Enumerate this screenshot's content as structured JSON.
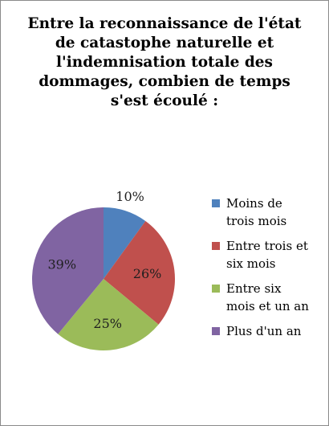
{
  "chart_data": {
    "type": "pie",
    "title_lines": [
      "Entre la  reconnaissance de l'état",
      "de catastophe naturelle et",
      "l'indemnisation totale des",
      "dommages, combien de temps",
      "s'est écoulé :"
    ],
    "slices": [
      {
        "name_lines": [
          "Moins de",
          "trois mois"
        ],
        "value": 10,
        "label": "10%",
        "color": "#4f81bd"
      },
      {
        "name_lines": [
          "Entre trois et",
          "six mois"
        ],
        "value": 26,
        "label": "26%",
        "color": "#c0504d"
      },
      {
        "name_lines": [
          "Entre six",
          "mois et un an"
        ],
        "value": 25,
        "label": "25%",
        "color": "#9bbb59"
      },
      {
        "name_lines": [
          "Plus d'un an"
        ],
        "value": 39,
        "label": "39%",
        "color": "#8064a2"
      }
    ],
    "legend_position": "right",
    "start_angle": "12 o'clock",
    "direction": "clockwise"
  }
}
